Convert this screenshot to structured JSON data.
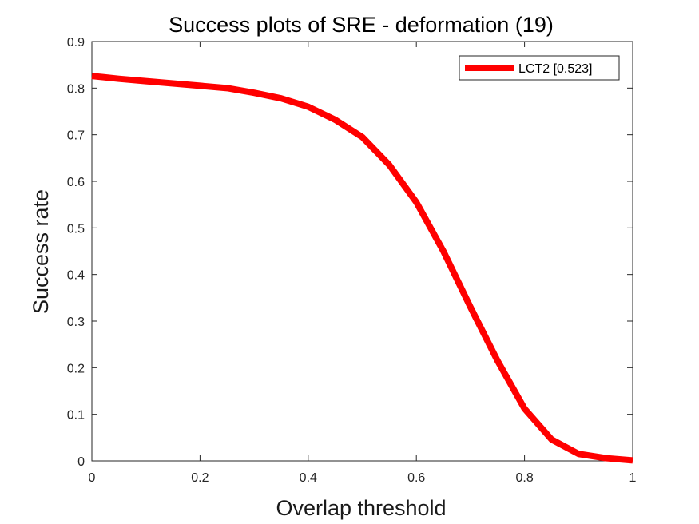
{
  "chart_data": {
    "type": "line",
    "title": "Success plots of SRE - deformation (19)",
    "xlabel": "Overlap threshold",
    "ylabel": "Success rate",
    "xlim": [
      0,
      1
    ],
    "ylim": [
      0,
      0.9
    ],
    "xticks": [
      0,
      0.2,
      0.4,
      0.6,
      0.8,
      1
    ],
    "xtick_labels": [
      "0",
      "0.2",
      "0.4",
      "0.6",
      "0.8",
      "1"
    ],
    "yticks": [
      0,
      0.1,
      0.2,
      0.3,
      0.4,
      0.5,
      0.6,
      0.7,
      0.8,
      0.9
    ],
    "ytick_labels": [
      "0",
      "0.1",
      "0.2",
      "0.3",
      "0.4",
      "0.5",
      "0.6",
      "0.7",
      "0.8",
      "0.9"
    ],
    "grid": false,
    "legend_position": "top-right",
    "series": [
      {
        "name": "LCT2 [0.523]",
        "color": "#ff0000",
        "x": [
          0,
          0.05,
          0.1,
          0.15,
          0.2,
          0.25,
          0.3,
          0.35,
          0.4,
          0.45,
          0.5,
          0.55,
          0.6,
          0.65,
          0.7,
          0.75,
          0.8,
          0.85,
          0.9,
          0.95,
          1
        ],
        "y": [
          0.826,
          0.82,
          0.815,
          0.81,
          0.805,
          0.8,
          0.79,
          0.778,
          0.76,
          0.732,
          0.695,
          0.635,
          0.555,
          0.45,
          0.33,
          0.215,
          0.112,
          0.046,
          0.015,
          0.006,
          0.001
        ]
      }
    ]
  }
}
